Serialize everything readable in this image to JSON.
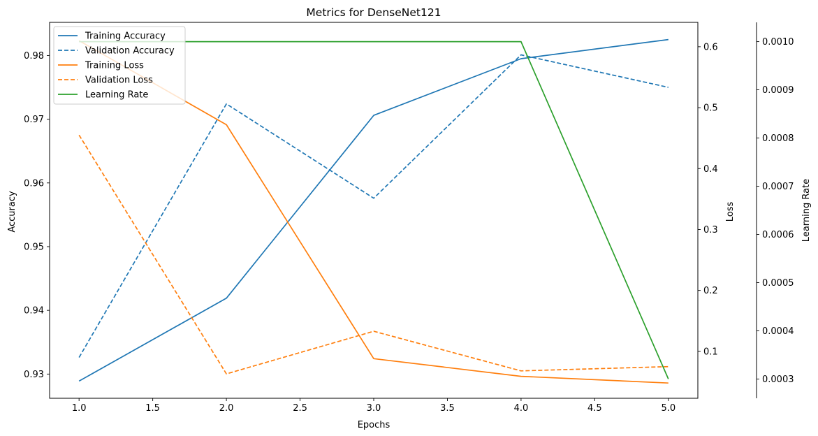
{
  "chart_data": {
    "type": "line",
    "title": "Metrics for DenseNet121",
    "xlabel": "Epochs",
    "x": [
      1.0,
      2.0,
      3.0,
      4.0,
      5.0
    ],
    "xlim": [
      0.8,
      5.2
    ],
    "xticks": [
      "1.0",
      "1.5",
      "2.0",
      "2.5",
      "3.0",
      "3.5",
      "4.0",
      "4.5",
      "5.0"
    ],
    "axes": {
      "accuracy": {
        "label": "Accuracy",
        "ylim": [
          0.9262,
          0.9852
        ],
        "ticks": [
          "0.93",
          "0.94",
          "0.95",
          "0.96",
          "0.97",
          "0.98"
        ]
      },
      "loss": {
        "label": "Loss",
        "ylim": [
          0.023,
          0.64
        ],
        "ticks": [
          "0.1",
          "0.2",
          "0.3",
          "0.4",
          "0.5",
          "0.6"
        ]
      },
      "learning_rate": {
        "label": "Learning Rate",
        "ylim": [
          0.00026,
          0.00104
        ],
        "ticks": [
          "0.0003",
          "0.0004",
          "0.0005",
          "0.0006",
          "0.0007",
          "0.0008",
          "0.0009",
          "0.0010"
        ]
      }
    },
    "series": [
      {
        "name": "Training Accuracy",
        "axis": "accuracy",
        "color": "#1f77b4",
        "dashed": false,
        "values": [
          0.9289,
          0.9419,
          0.9706,
          0.9795,
          0.9825
        ]
      },
      {
        "name": "Validation Accuracy",
        "axis": "accuracy",
        "color": "#1f77b4",
        "dashed": true,
        "values": [
          0.9326,
          0.9724,
          0.9576,
          0.9801,
          0.975
        ]
      },
      {
        "name": "Training Loss",
        "axis": "loss",
        "color": "#ff7f0e",
        "dashed": false,
        "values": [
          0.61,
          0.472,
          0.088,
          0.059,
          0.048
        ]
      },
      {
        "name": "Validation Loss",
        "axis": "loss",
        "color": "#ff7f0e",
        "dashed": true,
        "values": [
          0.455,
          0.063,
          0.133,
          0.068,
          0.075
        ]
      },
      {
        "name": "Learning Rate",
        "axis": "learning_rate",
        "color": "#2ca02c",
        "dashed": false,
        "values": [
          0.001,
          0.001,
          0.001,
          0.001,
          0.0003
        ]
      }
    ],
    "legend_position": "top-left",
    "grid": false
  }
}
